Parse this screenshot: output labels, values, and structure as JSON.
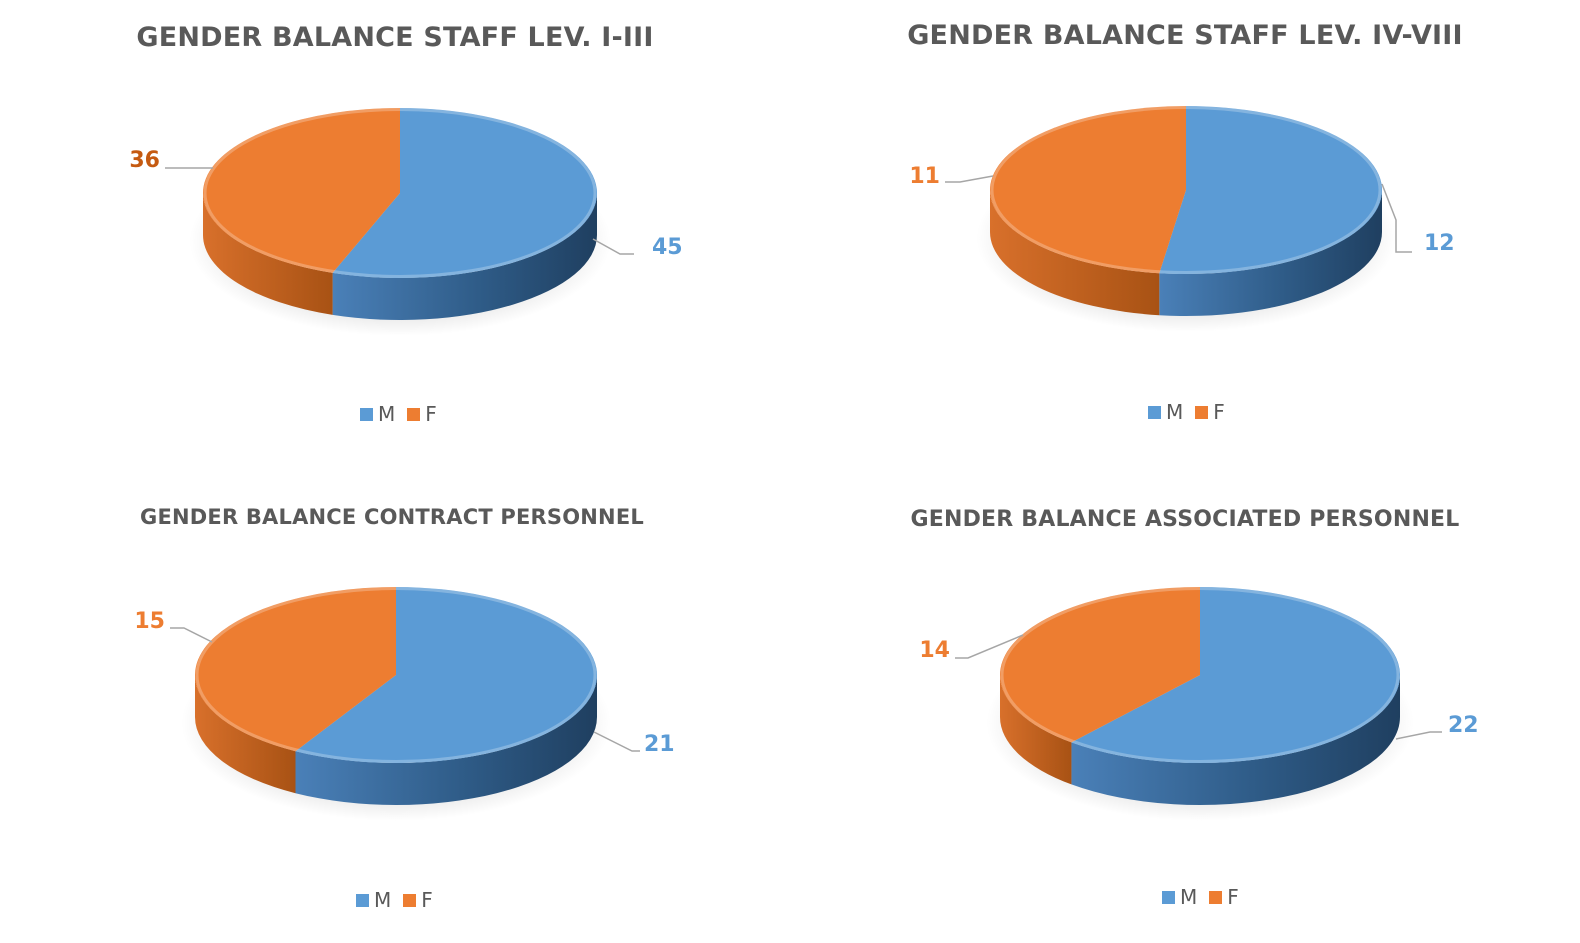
{
  "colors": {
    "male": "#5b9bd5",
    "female": "#ed7d31",
    "title": "#595959"
  },
  "legend": {
    "male_label": "M",
    "female_label": "F"
  },
  "chart_data": [
    {
      "type": "pie",
      "title": "GENDER BALANCE STAFF LEV. I-III",
      "categories": [
        "M",
        "F"
      ],
      "values": [
        45,
        36
      ],
      "data_labels": [
        "45",
        "36"
      ],
      "style": "3d"
    },
    {
      "type": "pie",
      "title": "GENDER BALANCE STAFF LEV. IV-VIII",
      "categories": [
        "M",
        "F"
      ],
      "values": [
        12,
        11
      ],
      "data_labels": [
        "12",
        "11"
      ],
      "style": "3d"
    },
    {
      "type": "pie",
      "title": "GENDER BALANCE CONTRACT PERSONNEL",
      "categories": [
        "M",
        "F"
      ],
      "values": [
        21,
        15
      ],
      "data_labels": [
        "21",
        "15"
      ],
      "style": "3d"
    },
    {
      "type": "pie",
      "title": "GENDER BALANCE ASSOCIATED PERSONNEL",
      "categories": [
        "M",
        "F"
      ],
      "values": [
        22,
        14
      ],
      "data_labels": [
        "22",
        "14"
      ],
      "style": "3d"
    }
  ]
}
